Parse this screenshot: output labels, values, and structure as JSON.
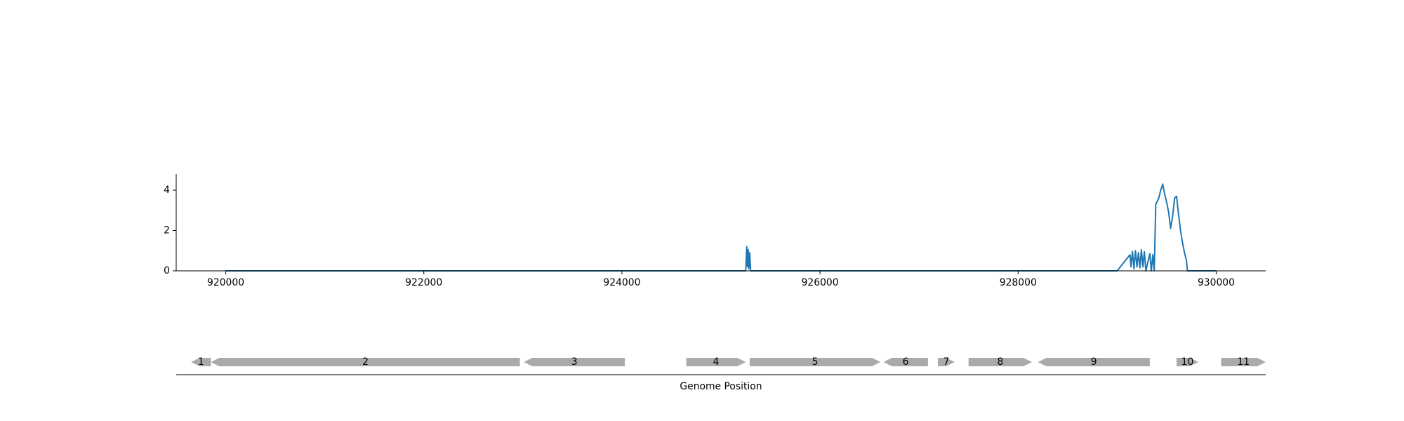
{
  "chart_data": [
    {
      "type": "line",
      "title": "",
      "xlabel": "",
      "ylabel": "",
      "xlim": [
        919500,
        930500
      ],
      "ylim": [
        0,
        4.8
      ],
      "grid": false,
      "x_ticks": [
        920000,
        922000,
        924000,
        926000,
        928000,
        930000
      ],
      "x_tick_labels": [
        "920000",
        "922000",
        "924000",
        "926000",
        "928000",
        "930000"
      ],
      "y_ticks": [
        0,
        2,
        4
      ],
      "y_tick_labels": [
        "0",
        "2",
        "4"
      ],
      "color": "#1f77b4",
      "series": [
        {
          "x": [
            920000,
            925250,
            925260,
            925268,
            925275,
            925282,
            925290,
            925300,
            929000,
            929130,
            929140,
            929155,
            929170,
            929185,
            929200,
            929215,
            929230,
            929245,
            929260,
            929275,
            929290,
            929330,
            929345,
            929360,
            929375,
            929390,
            929420,
            929440,
            929460,
            929480,
            929500,
            929520,
            929540,
            929560,
            929580,
            929600,
            929620,
            929640,
            929660,
            929680,
            929700,
            929710,
            930000
          ],
          "y": [
            0,
            0,
            1.2,
            0.2,
            1.05,
            0.1,
            0.9,
            0,
            0,
            0.8,
            0.2,
            0.95,
            0.1,
            1.0,
            0.2,
            0.9,
            0.15,
            1.05,
            0.2,
            0.95,
            0,
            0.85,
            0,
            0.8,
            0,
            3.3,
            3.6,
            4.0,
            4.3,
            3.8,
            3.4,
            2.9,
            2.1,
            2.7,
            3.6,
            3.7,
            2.8,
            2.0,
            1.4,
            0.9,
            0.5,
            0,
            0
          ]
        }
      ]
    },
    {
      "type": "gene-track",
      "xlabel": "Genome Position",
      "genes": [
        {
          "label": "1",
          "start": 919650,
          "end": 919850,
          "strand": "-"
        },
        {
          "label": "2",
          "start": 919850,
          "end": 922970,
          "strand": "-"
        },
        {
          "label": "3",
          "start": 923010,
          "end": 924030,
          "strand": "-"
        },
        {
          "label": "4",
          "start": 924650,
          "end": 925250,
          "strand": "+"
        },
        {
          "label": "5",
          "start": 925290,
          "end": 926610,
          "strand": "+"
        },
        {
          "label": "6",
          "start": 926640,
          "end": 927090,
          "strand": "-"
        },
        {
          "label": "7",
          "start": 927190,
          "end": 927360,
          "strand": "+"
        },
        {
          "label": "8",
          "start": 927500,
          "end": 928140,
          "strand": "+"
        },
        {
          "label": "9",
          "start": 928200,
          "end": 929330,
          "strand": "-"
        },
        {
          "label": "10",
          "start": 929600,
          "end": 929820,
          "strand": "+"
        },
        {
          "label": "11",
          "start": 930050,
          "end": 930500,
          "strand": "+"
        }
      ],
      "color": "#aaaaaa"
    }
  ]
}
